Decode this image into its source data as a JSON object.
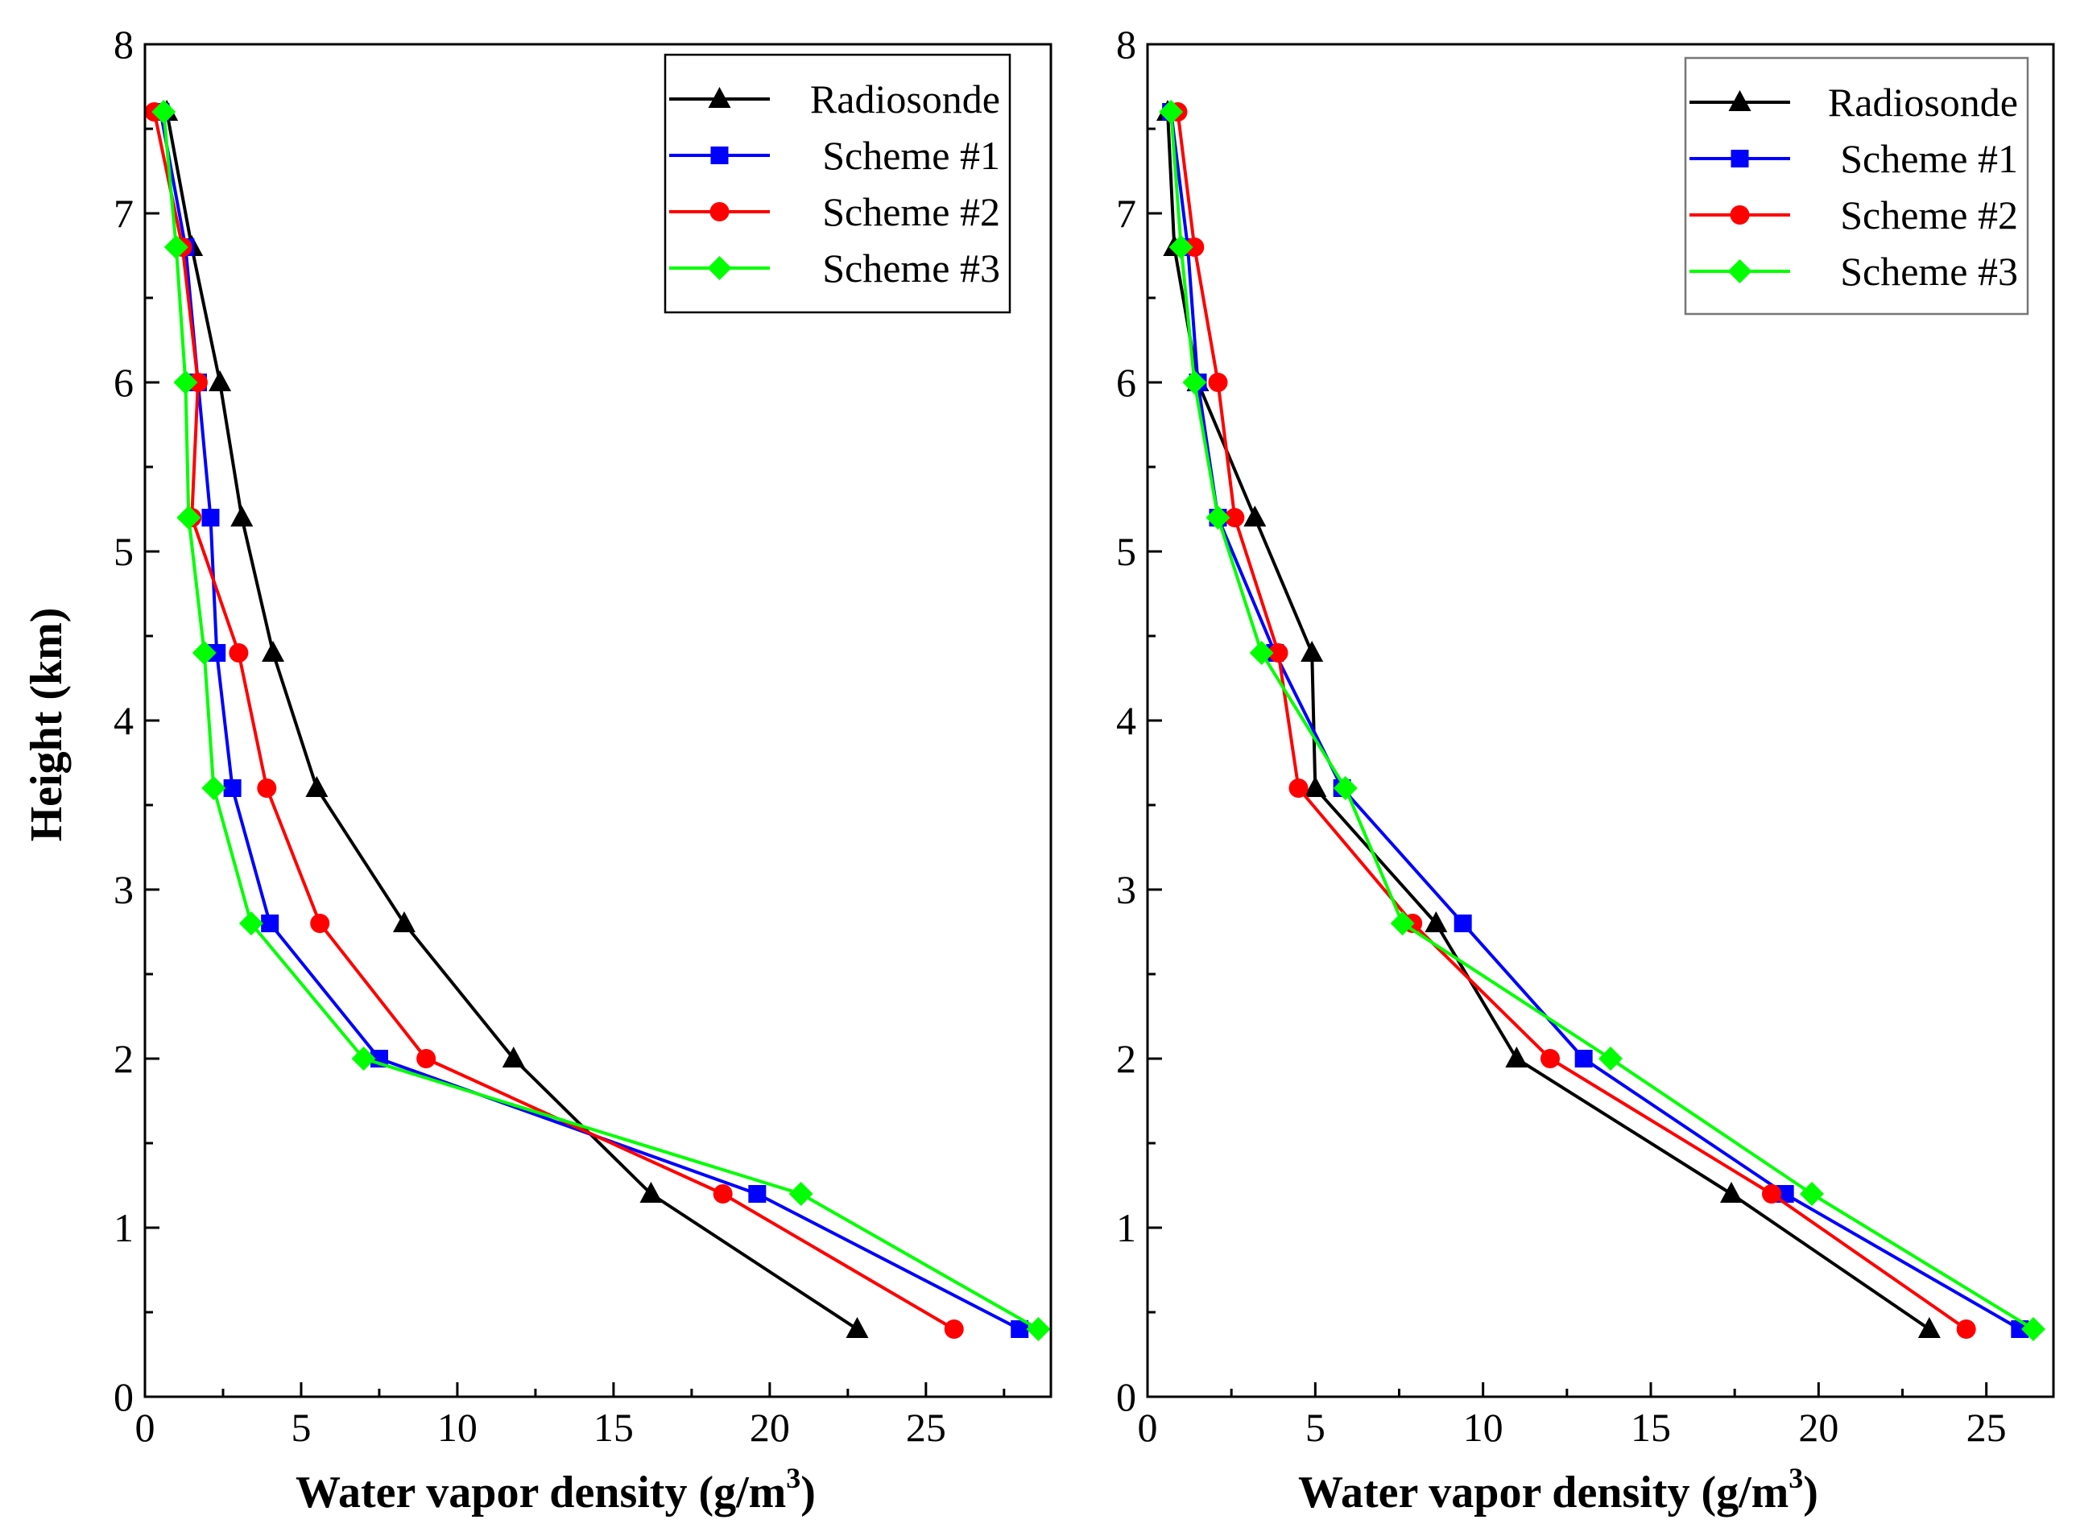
{
  "chart_data": [
    {
      "type": "line",
      "panel": "left",
      "xlabel_main": "Water vapor density (g/m",
      "xlabel_sup": "3",
      "xlabel_end": ")",
      "ylabel": "Height (km)",
      "xlim": [
        0,
        29
      ],
      "ylim": [
        0,
        8
      ],
      "xticks": [
        "0",
        "5",
        "10",
        "15",
        "20",
        "25"
      ],
      "yticks": [
        "0",
        "1",
        "2",
        "3",
        "4",
        "5",
        "6",
        "7",
        "8"
      ],
      "legend_position": "top-right",
      "series": [
        {
          "name": "Radiosonde",
          "color": "#000000",
          "marker": "triangle",
          "x": [
            22.8,
            16.2,
            11.8,
            8.3,
            5.5,
            4.1,
            3.1,
            2.4,
            1.5,
            0.7
          ],
          "y": [
            0.4,
            1.2,
            2.0,
            2.8,
            3.6,
            4.4,
            5.2,
            6.0,
            6.8,
            7.6
          ]
        },
        {
          "name": "Scheme #1",
          "color": "#0000ff",
          "marker": "square",
          "x": [
            28.0,
            19.6,
            7.5,
            4.0,
            2.8,
            2.3,
            2.1,
            1.7,
            1.3,
            0.5
          ],
          "y": [
            0.4,
            1.2,
            2.0,
            2.8,
            3.6,
            4.4,
            5.2,
            6.0,
            6.8,
            7.6
          ]
        },
        {
          "name": "Scheme #2",
          "color": "#ff0000",
          "marker": "circle",
          "x": [
            25.9,
            18.5,
            9.0,
            5.6,
            3.9,
            3.0,
            1.5,
            1.7,
            1.2,
            0.3
          ],
          "y": [
            0.4,
            1.2,
            2.0,
            2.8,
            3.6,
            4.4,
            5.2,
            6.0,
            6.8,
            7.6
          ]
        },
        {
          "name": "Scheme #3",
          "color": "#00ff00",
          "marker": "diamond",
          "x": [
            28.6,
            21.0,
            7.0,
            3.4,
            2.2,
            1.9,
            1.4,
            1.3,
            1.0,
            0.6
          ],
          "y": [
            0.4,
            1.2,
            2.0,
            2.8,
            3.6,
            4.4,
            5.2,
            6.0,
            6.8,
            7.6
          ]
        }
      ]
    },
    {
      "type": "line",
      "panel": "right",
      "xlabel_main": "Water vapor density (g/m",
      "xlabel_sup": "3",
      "xlabel_end": ")",
      "ylabel": "",
      "xlim": [
        0,
        27
      ],
      "ylim": [
        0,
        8
      ],
      "xticks": [
        "0",
        "5",
        "10",
        "15",
        "20",
        "25"
      ],
      "yticks": [
        "0",
        "1",
        "2",
        "3",
        "4",
        "5",
        "6",
        "7",
        "8"
      ],
      "legend_position": "top-right",
      "series": [
        {
          "name": "Radiosonde",
          "color": "#000000",
          "marker": "triangle",
          "x": [
            23.3,
            17.4,
            11.0,
            8.6,
            5.0,
            4.9,
            3.2,
            1.5,
            0.8,
            0.6
          ],
          "y": [
            0.4,
            1.2,
            2.0,
            2.8,
            3.6,
            4.4,
            5.2,
            6.0,
            6.8,
            7.6
          ]
        },
        {
          "name": "Scheme #1",
          "color": "#0000ff",
          "marker": "square",
          "x": [
            26.0,
            19.0,
            13.0,
            9.4,
            5.8,
            3.8,
            2.1,
            1.5,
            1.2,
            0.7
          ],
          "y": [
            0.4,
            1.2,
            2.0,
            2.8,
            3.6,
            4.4,
            5.2,
            6.0,
            6.8,
            7.6
          ]
        },
        {
          "name": "Scheme #2",
          "color": "#ff0000",
          "marker": "circle",
          "x": [
            24.4,
            18.6,
            12.0,
            7.9,
            4.5,
            3.9,
            2.6,
            2.1,
            1.4,
            0.9
          ],
          "y": [
            0.4,
            1.2,
            2.0,
            2.8,
            3.6,
            4.4,
            5.2,
            6.0,
            6.8,
            7.6
          ]
        },
        {
          "name": "Scheme #3",
          "color": "#00ff00",
          "marker": "diamond",
          "x": [
            26.4,
            19.8,
            13.8,
            7.6,
            5.9,
            3.4,
            2.1,
            1.4,
            1.0,
            0.7
          ],
          "y": [
            0.4,
            1.2,
            2.0,
            2.8,
            3.6,
            4.4,
            5.2,
            6.0,
            6.8,
            7.6
          ]
        }
      ]
    }
  ]
}
